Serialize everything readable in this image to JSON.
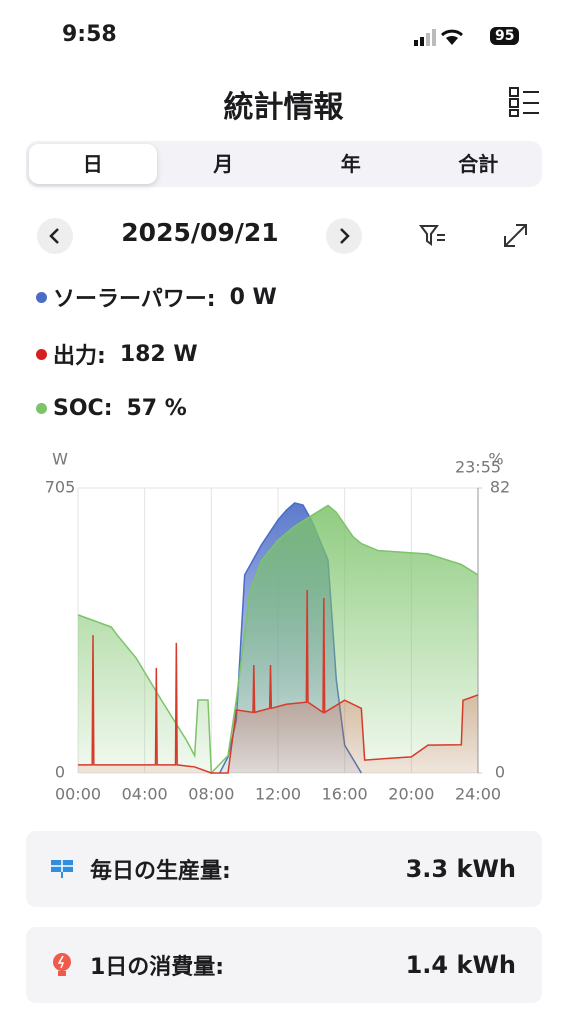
{
  "status_bar": {
    "time": "9:58",
    "battery": "95"
  },
  "header": {
    "title": "統計情報"
  },
  "tabs": [
    "日",
    "月",
    "年",
    "合計"
  ],
  "date": "2025/09/21",
  "readings": [
    {
      "label": "ソーラーパワー:",
      "value": "0 W"
    },
    {
      "label": "出力:",
      "value": "182 W"
    },
    {
      "label": "SOC:",
      "value": "57 %"
    }
  ],
  "chart_data": {
    "type": "area",
    "y_label": "W",
    "y2_label": "%",
    "annotation": "23:55",
    "xlim": [
      0,
      24
    ],
    "xticks": [
      {
        "value": 0,
        "label": "00:00"
      },
      {
        "value": 4,
        "label": "04:00"
      },
      {
        "value": 8,
        "label": "08:00"
      },
      {
        "value": 12,
        "label": "12:00"
      },
      {
        "value": 16,
        "label": "16:00"
      },
      {
        "value": 20,
        "label": "20:00"
      },
      {
        "value": 24,
        "label": "24:00"
      }
    ],
    "ylim": [
      0,
      705
    ],
    "yticks": [
      0,
      705
    ],
    "y2lim": [
      0,
      82
    ],
    "y2ticks": [
      0,
      82
    ],
    "grid": true,
    "series": [
      {
        "name": "ソーラーパワー",
        "color": "#4a6cc6",
        "x": [
          8.5,
          9,
          9.5,
          10,
          11,
          12,
          12.5,
          13,
          13.5,
          14,
          15,
          15.5,
          16,
          17
        ],
        "values": [
          0,
          40,
          131,
          490,
          564,
          626,
          650,
          668,
          663,
          626,
          527,
          230,
          69,
          0
        ]
      },
      {
        "name": "SOC",
        "color": "#7cc36a",
        "axis": "y2",
        "x": [
          0,
          2,
          2.3,
          3.5,
          5,
          6.5,
          7,
          7.2,
          7.8,
          8,
          9,
          9.5,
          10.3,
          11,
          12,
          13,
          14,
          15,
          15.5,
          16.5,
          17,
          18,
          21,
          23,
          24
        ],
        "values": [
          45.5,
          42,
          40,
          33,
          21,
          9.5,
          5,
          21,
          21,
          0,
          5,
          21,
          52,
          61,
          67,
          71,
          74,
          77,
          75,
          68,
          66,
          64,
          63,
          60,
          57
        ]
      },
      {
        "name": "出力",
        "color": "#d63a2a",
        "x": [
          0,
          0.85,
          0.9,
          0.95,
          4.65,
          4.7,
          4.75,
          5.85,
          5.9,
          5.95,
          7,
          8,
          9,
          9.5,
          10.5,
          10.55,
          10.6,
          11.5,
          11.55,
          11.6,
          12.5,
          13.7,
          13.75,
          13.8,
          14.7,
          14.75,
          14.8,
          16,
          17,
          17.2,
          20,
          21,
          23,
          23.1,
          24
        ],
        "values": [
          20,
          20,
          341,
          20,
          20,
          260,
          20,
          20,
          322,
          20,
          15,
          0,
          0,
          156,
          150,
          267,
          150,
          160,
          267,
          160,
          170,
          175,
          453,
          175,
          150,
          433,
          150,
          180,
          160,
          32,
          40,
          69,
          70,
          180,
          193
        ]
      }
    ]
  },
  "summary": [
    {
      "label": "毎日の生産量:",
      "value": "3.3 kWh"
    },
    {
      "label": "1日の消費量:",
      "value": "1.4 kWh"
    }
  ]
}
